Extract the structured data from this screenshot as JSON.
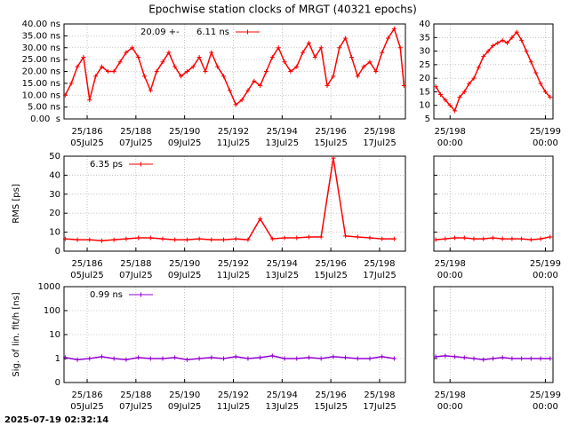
{
  "title": "Epochwise station clocks of MRGT (40321 epochs)",
  "timestamp": "2025-07-19 02:32:14",
  "chart_data": [
    {
      "type": "line",
      "annotation": "20.09 +-",
      "xlim": [
        185.05,
        199.06
      ],
      "xticks": [
        {
          "value": 186,
          "label": "25/186"
        },
        {
          "value": 188,
          "label": "25/188"
        },
        {
          "value": 190,
          "label": "25/190"
        },
        {
          "value": 192,
          "label": "25/192"
        },
        {
          "value": 194,
          "label": "25/194"
        },
        {
          "value": 196,
          "label": "25/196"
        },
        {
          "value": 198,
          "label": "25/198"
        }
      ],
      "xtick_sublabels": [
        "05Jul25",
        "07Jul25",
        "09Jul25",
        "11Jul25",
        "13Jul25",
        "15Jul25",
        "17Jul25"
      ],
      "ylim": [
        0,
        40
      ],
      "yticks": [
        {
          "value": 0,
          "label": "0.00  s"
        },
        {
          "value": 5,
          "label": "5.00 ns"
        },
        {
          "value": 10,
          "label": "10.00 ns"
        },
        {
          "value": 15,
          "label": "15.00 ns"
        },
        {
          "value": 20,
          "label": "20.00 ns"
        },
        {
          "value": 25,
          "label": "25.00 ns"
        },
        {
          "value": 30,
          "label": "30.00 ns"
        },
        {
          "value": 35,
          "label": "35.00 ns"
        },
        {
          "value": 40,
          "label": "40.00 ns"
        }
      ],
      "show_ytick_labels": true,
      "grid": true,
      "log": false,
      "x": [
        185.1,
        185.35,
        185.6,
        185.85,
        186.1,
        186.35,
        186.6,
        186.85,
        187.1,
        187.35,
        187.6,
        187.85,
        188.1,
        188.35,
        188.6,
        188.85,
        189.1,
        189.35,
        189.6,
        189.85,
        190.1,
        190.35,
        190.6,
        190.85,
        191.1,
        191.35,
        191.6,
        191.85,
        192.1,
        192.35,
        192.6,
        192.85,
        193.1,
        193.35,
        193.6,
        193.85,
        194.1,
        194.35,
        194.6,
        194.85,
        195.1,
        195.35,
        195.6,
        195.85,
        196.1,
        196.35,
        196.6,
        196.85,
        197.1,
        197.35,
        197.6,
        197.85,
        198.1,
        198.35,
        198.6,
        198.85,
        199.0
      ],
      "series": [
        {
          "name": "6.11 ns",
          "color": "#ff0000",
          "values": [
            10,
            15,
            22,
            26,
            8,
            18,
            22,
            20,
            20,
            24,
            28,
            30,
            26,
            18,
            12,
            20,
            24,
            28,
            22,
            18,
            20,
            22,
            26,
            20,
            28,
            22,
            18,
            12,
            6,
            8,
            12,
            16,
            14,
            20,
            26,
            30,
            24,
            20,
            22,
            28,
            32,
            26,
            30,
            14,
            18,
            30,
            34,
            26,
            18,
            22,
            24,
            20,
            28,
            34,
            38,
            30,
            14
          ]
        }
      ]
    },
    {
      "type": "line",
      "xlim": [
        197.83,
        199.08
      ],
      "xticks": [
        {
          "value": 198,
          "label": "25/198"
        },
        {
          "value": 199,
          "label": "25/199"
        }
      ],
      "xtick_sublabels": [
        "00:00",
        "00:00"
      ],
      "ylim": [
        5,
        40
      ],
      "yticks": [
        5,
        10,
        15,
        20,
        25,
        30,
        35,
        40
      ],
      "show_ytick_labels": true,
      "grid": true,
      "log": false,
      "x": [
        197.85,
        197.9,
        197.95,
        198.0,
        198.05,
        198.1,
        198.15,
        198.2,
        198.25,
        198.3,
        198.35,
        198.4,
        198.45,
        198.5,
        198.55,
        198.6,
        198.65,
        198.7,
        198.75,
        198.8,
        198.85,
        198.9,
        198.95,
        199.0,
        199.05
      ],
      "series": [
        {
          "color": "#ff0000",
          "values": [
            17,
            14,
            12,
            10,
            8,
            13,
            15,
            18,
            20,
            24,
            28,
            30,
            32,
            33,
            34,
            33,
            35,
            37,
            34,
            30,
            26,
            22,
            18,
            15,
            13
          ]
        }
      ]
    },
    {
      "type": "line",
      "ylabel": "RMS [ps]",
      "xlim": [
        185.05,
        199.06
      ],
      "xticks": [
        {
          "value": 186,
          "label": "25/186"
        },
        {
          "value": 188,
          "label": "25/188"
        },
        {
          "value": 190,
          "label": "25/190"
        },
        {
          "value": 192,
          "label": "25/192"
        },
        {
          "value": 194,
          "label": "25/194"
        },
        {
          "value": 196,
          "label": "25/196"
        },
        {
          "value": 198,
          "label": "25/198"
        }
      ],
      "xtick_sublabels": [
        "05Jul25",
        "07Jul25",
        "09Jul25",
        "11Jul25",
        "13Jul25",
        "15Jul25",
        "17Jul25"
      ],
      "ylim": [
        0,
        50
      ],
      "yticks": [
        0,
        10,
        20,
        30,
        40,
        50
      ],
      "show_ytick_labels": true,
      "grid": true,
      "log": false,
      "x": [
        185.1,
        185.6,
        186.1,
        186.6,
        187.1,
        187.6,
        188.1,
        188.6,
        189.1,
        189.6,
        190.1,
        190.6,
        191.1,
        191.6,
        192.1,
        192.6,
        193.1,
        193.6,
        194.1,
        194.6,
        195.1,
        195.6,
        196.1,
        196.6,
        197.1,
        197.6,
        198.1,
        198.6
      ],
      "series": [
        {
          "name": "6.35 ps",
          "color": "#ff0000",
          "values": [
            6.5,
            6,
            6,
            5.5,
            6,
            6.5,
            7,
            7,
            6.5,
            6,
            6,
            6.5,
            6,
            6,
            6.5,
            6,
            17,
            6.5,
            7,
            7,
            7.5,
            7.5,
            49,
            8,
            7.5,
            7,
            6.5,
            6.5
          ]
        }
      ]
    },
    {
      "type": "line",
      "xlim": [
        197.83,
        199.08
      ],
      "xticks": [
        {
          "value": 198,
          "label": "25/198"
        },
        {
          "value": 199,
          "label": "25/199"
        }
      ],
      "xtick_sublabels": [
        "00:00",
        "00:00"
      ],
      "ylim": [
        0,
        50
      ],
      "yticks": [
        0,
        10,
        20,
        30,
        40,
        50
      ],
      "show_ytick_labels": false,
      "grid": true,
      "log": false,
      "x": [
        197.85,
        197.95,
        198.05,
        198.15,
        198.25,
        198.35,
        198.45,
        198.55,
        198.65,
        198.75,
        198.85,
        198.95,
        199.05
      ],
      "series": [
        {
          "color": "#ff0000",
          "values": [
            6,
            6.5,
            7,
            7,
            6.5,
            6.5,
            7,
            6.5,
            6.5,
            6.5,
            6,
            6.5,
            7.5
          ]
        }
      ]
    },
    {
      "type": "line",
      "ylabel": "Sig. of lin. fit/h [ns]",
      "xlim": [
        185.05,
        199.06
      ],
      "xticks": [
        {
          "value": 186,
          "label": "25/186"
        },
        {
          "value": 188,
          "label": "25/188"
        },
        {
          "value": 190,
          "label": "25/190"
        },
        {
          "value": 192,
          "label": "25/192"
        },
        {
          "value": 194,
          "label": "25/194"
        },
        {
          "value": 196,
          "label": "25/196"
        },
        {
          "value": 198,
          "label": "25/198"
        }
      ],
      "xtick_sublabels": [
        "05Jul25",
        "07Jul25",
        "09Jul25",
        "11Jul25",
        "13Jul25",
        "15Jul25",
        "17Jul25"
      ],
      "ylim": [
        0.1,
        1000
      ],
      "yticks": [
        {
          "value": 0.1,
          "label": "0"
        },
        1,
        10,
        100,
        1000
      ],
      "show_ytick_labels": true,
      "grid": true,
      "log": true,
      "x": [
        185.1,
        185.6,
        186.1,
        186.6,
        187.1,
        187.6,
        188.1,
        188.6,
        189.1,
        189.6,
        190.1,
        190.6,
        191.1,
        191.6,
        192.1,
        192.6,
        193.1,
        193.6,
        194.1,
        194.6,
        195.1,
        195.6,
        196.1,
        196.6,
        197.1,
        197.6,
        198.1,
        198.6
      ],
      "series": [
        {
          "name": "0.99 ns",
          "color": "#9400d3",
          "values": [
            1.1,
            0.9,
            1,
            1.2,
            1,
            0.9,
            1.1,
            1,
            1,
            1.1,
            0.9,
            1,
            1.1,
            1,
            1.2,
            1,
            1.1,
            1.3,
            1,
            1,
            1.1,
            1,
            1.2,
            1.1,
            1,
            1,
            1.2,
            1
          ]
        }
      ]
    },
    {
      "type": "line",
      "xlim": [
        197.83,
        199.08
      ],
      "xticks": [
        {
          "value": 198,
          "label": "25/198"
        },
        {
          "value": 199,
          "label": "25/199"
        }
      ],
      "xtick_sublabels": [
        "00:00",
        "00:00"
      ],
      "ylim": [
        0.1,
        1000
      ],
      "yticks": [
        0.1,
        1,
        10,
        100,
        1000
      ],
      "show_ytick_labels": false,
      "grid": true,
      "log": true,
      "x": [
        197.85,
        197.95,
        198.05,
        198.15,
        198.25,
        198.35,
        198.45,
        198.55,
        198.65,
        198.75,
        198.85,
        198.95,
        199.05
      ],
      "series": [
        {
          "color": "#9400d3",
          "values": [
            1.2,
            1.3,
            1.2,
            1.1,
            1.0,
            0.9,
            1.0,
            1.1,
            1.0,
            1.0,
            1.0,
            1.0,
            1.0
          ]
        }
      ]
    }
  ]
}
